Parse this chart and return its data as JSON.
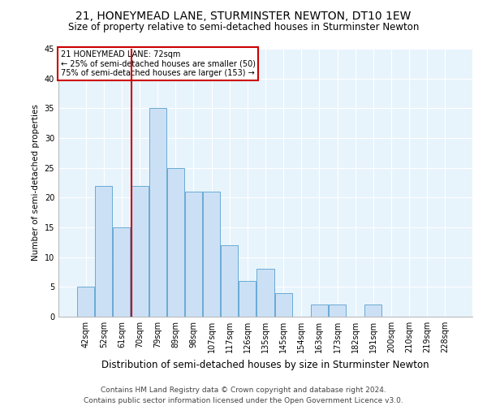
{
  "title": "21, HONEYMEAD LANE, STURMINSTER NEWTON, DT10 1EW",
  "subtitle": "Size of property relative to semi-detached houses in Sturminster Newton",
  "xlabel": "Distribution of semi-detached houses by size in Sturminster Newton",
  "ylabel": "Number of semi-detached properties",
  "footnote": "Contains HM Land Registry data © Crown copyright and database right 2024.\nContains public sector information licensed under the Open Government Licence v3.0.",
  "bar_labels": [
    "42sqm",
    "52sqm",
    "61sqm",
    "70sqm",
    "79sqm",
    "89sqm",
    "98sqm",
    "107sqm",
    "117sqm",
    "126sqm",
    "135sqm",
    "145sqm",
    "154sqm",
    "163sqm",
    "173sqm",
    "182sqm",
    "191sqm",
    "200sqm",
    "210sqm",
    "219sqm",
    "228sqm"
  ],
  "bar_values": [
    5,
    22,
    15,
    22,
    35,
    25,
    21,
    21,
    12,
    6,
    8,
    4,
    0,
    2,
    2,
    0,
    2,
    0,
    0,
    0,
    0
  ],
  "bar_color": "#cce0f5",
  "bar_edge_color": "#6aaad4",
  "background_color": "#e8f4fc",
  "grid_color": "#ffffff",
  "vline_color": "#cc0000",
  "box_edge_color": "#cc0000",
  "ylim": [
    0,
    45
  ],
  "yticks": [
    0,
    5,
    10,
    15,
    20,
    25,
    30,
    35,
    40,
    45
  ],
  "property_label": "21 HONEYMEAD LANE: 72sqm",
  "smaller_pct": 25,
  "smaller_count": 50,
  "larger_pct": 75,
  "larger_count": 153,
  "title_fontsize": 10,
  "subtitle_fontsize": 8.5,
  "xlabel_fontsize": 8.5,
  "ylabel_fontsize": 7.5,
  "tick_fontsize": 7,
  "annotation_fontsize": 7,
  "footnote_fontsize": 6.5
}
